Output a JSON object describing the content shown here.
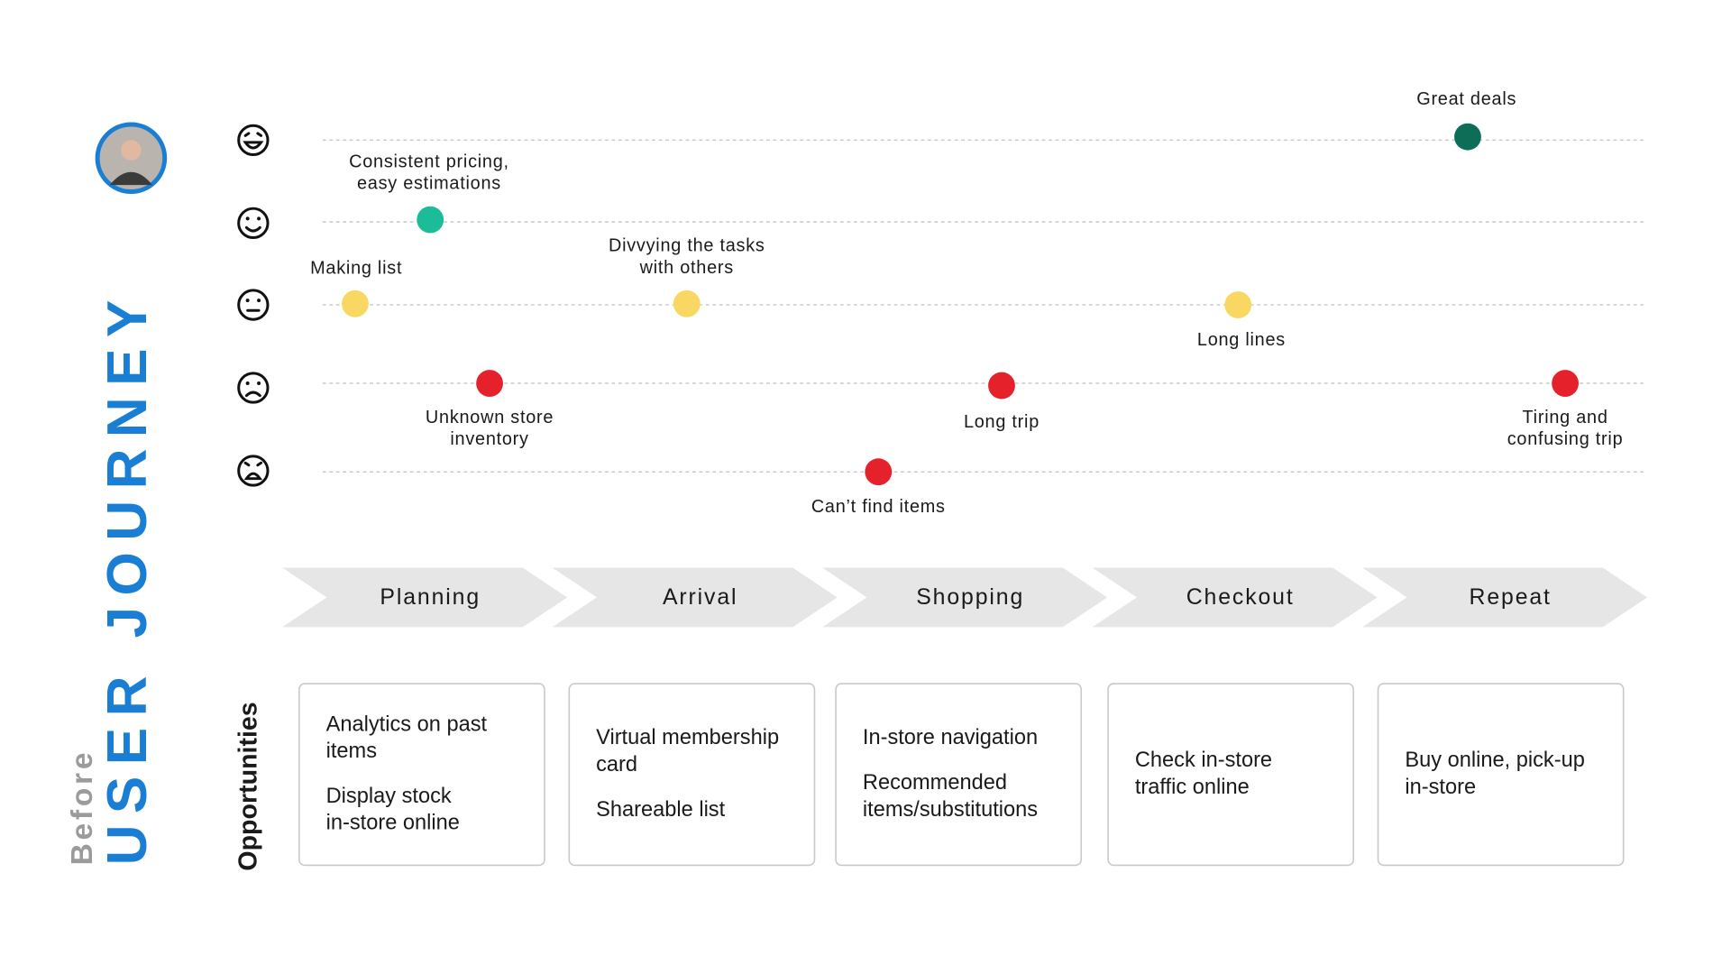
{
  "title": "USER JOURNEY",
  "subtitle": "Before",
  "points": [
    {
      "label": [
        "Making list"
      ],
      "color": "#f8d862"
    },
    {
      "label": [
        "Consistent pricing,",
        "easy estimations"
      ],
      "color": "#1dbc98"
    },
    {
      "label": [
        "Unknown store",
        "inventory"
      ],
      "color": "#e5222b"
    },
    {
      "label": [
        "Divvying the tasks",
        "with others"
      ],
      "color": "#f8d862"
    },
    {
      "label": [
        "Can’t find items"
      ],
      "color": "#e5222b"
    },
    {
      "label": [
        "Long trip"
      ],
      "color": "#e5222b"
    },
    {
      "label": [
        "Long lines"
      ],
      "color": "#f8d862"
    },
    {
      "label": [
        "Great deals"
      ],
      "color": "#0c6e57"
    },
    {
      "label": [
        "Tiring and",
        "confusing trip"
      ],
      "color": "#e5222b"
    }
  ],
  "stages": [
    "Planning",
    "Arrival",
    "Shopping",
    "Checkout",
    "Repeat"
  ],
  "opportunities_label": "Opportunities",
  "opportunities": [
    [
      [
        "Analytics on past",
        "items"
      ],
      [
        "Display stock",
        "in-store online"
      ]
    ],
    [
      [
        "Virtual membership",
        "card"
      ],
      [
        "Shareable list"
      ]
    ],
    [
      [
        "In-store navigation"
      ],
      [
        "Recommended",
        "items/substitutions"
      ]
    ],
    [
      [
        "Check in-store",
        "traffic online"
      ]
    ],
    [
      [
        "Buy online, pick-up",
        "in-store"
      ]
    ]
  ]
}
